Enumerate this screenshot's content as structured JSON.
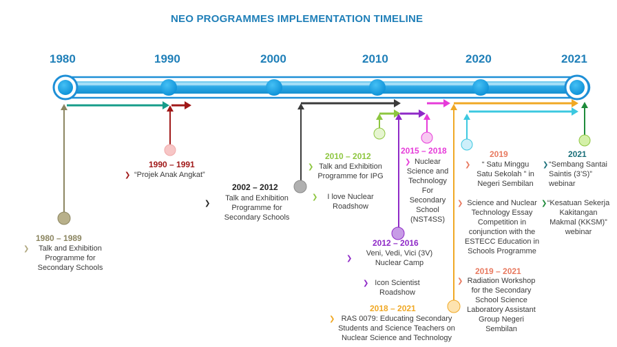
{
  "title": "NEO PROGRAMMES IMPLEMENTATION TIMELINE",
  "years": [
    "1980",
    "1990",
    "2000",
    "2010",
    "2020",
    "2021"
  ],
  "colors": {
    "accent": "#1f7fb8",
    "olive": "#8b8560",
    "darkred": "#a01818",
    "black": "#333333",
    "green": "#8dc63f",
    "purple": "#8e29c7",
    "magenta": "#e63bd9",
    "orange": "#f0a824",
    "cyan": "#3cc8e0",
    "darkgreen": "#1e8b3a",
    "salmon": "#e8795f",
    "teal": "#1a6f7a"
  },
  "bullet_glyph": "❯",
  "events": {
    "e1980": {
      "range": "1980 – 1989",
      "desc": "Talk and Exhibition\nProgramme for\nSecondary Schools"
    },
    "e1990": {
      "range": "1990 – 1991",
      "desc": "“Projek Anak Angkat”"
    },
    "e2002": {
      "range": "2002 – 2012",
      "desc": "Talk and Exhibition\nProgramme for\nSecondary Schools"
    },
    "e2010": {
      "range": "2010 – 2012",
      "desc1": "Talk and Exhibition\nProgramme for IPG",
      "desc2": "I love Nuclear\nRoadshow"
    },
    "e2015": {
      "range": "2015 – 2018",
      "desc": "Nuclear\nScience and\nTechnology\nFor\nSecondary\nSchool\n(NST4SS)"
    },
    "e2012": {
      "range": "2012 – 2016",
      "desc1": "Veni, Vedi, Vici (3V)\nNuclear Camp",
      "desc2": "Icon Scientist\nRoadshow"
    },
    "e2018": {
      "range": "2018 – 2021",
      "desc": "RAS 0079: Educating Secondary\nStudents and Science Teachers on\nNuclear Science and Technology"
    },
    "e2019a": {
      "range": "2019",
      "desc1": "“ Satu Minggu\nSatu Sekolah ” in\nNegeri Sembilan",
      "desc2": "Science and Nuclear\nTechnology Essay\nCompetition in\nconjunction with the\nESTECC Education in\nSchools Programme"
    },
    "e2019b": {
      "range": "2019 – 2021",
      "desc": "Radiation Workshop\nfor the Secondary\nSchool Science\nLaboratory Assistant\nGroup Negeri\nSembilan"
    },
    "e2021": {
      "range": "2021",
      "desc1": "“Sembang Santai\nSaintis (3’S)” webinar",
      "desc2": "“Kesatuan Sekerja\nKakitangan\nMakmal (KKSM)”\nwebinar"
    }
  }
}
